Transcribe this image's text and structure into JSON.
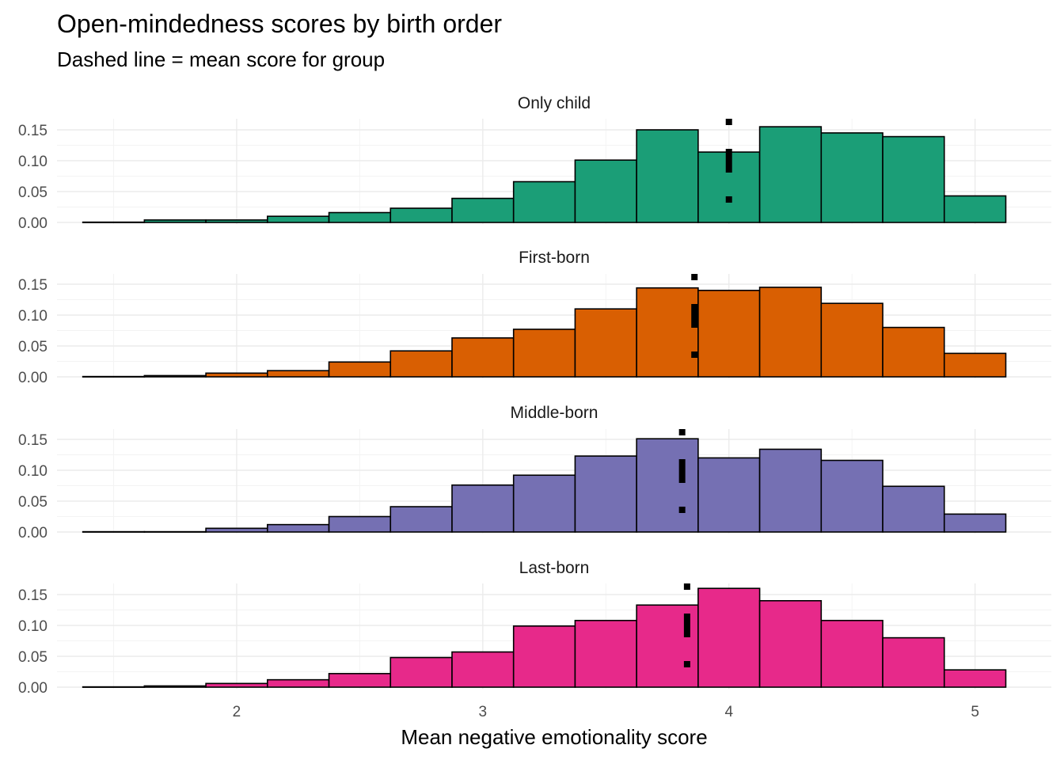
{
  "title": "Open-mindedness scores by birth order",
  "subtitle": "Dashed line = mean score for group",
  "chart_data": {
    "type": "bar",
    "subtype": "faceted-histogram",
    "xlabel": "Mean negative emotionality score",
    "ylabel": "",
    "xlim": [
      1.27,
      5.31
    ],
    "ylim": [
      0,
      0.165
    ],
    "x_ticks": [
      "2",
      "3",
      "4",
      "5"
    ],
    "x_tick_values": [
      2,
      3,
      4,
      5
    ],
    "y_ticks": [
      "0.00",
      "0.05",
      "0.10",
      "0.15"
    ],
    "y_tick_values": [
      0,
      0.05,
      0.1,
      0.15
    ],
    "bin_edges": [
      1.375,
      1.625,
      1.875,
      2.125,
      2.375,
      2.625,
      2.875,
      3.125,
      3.375,
      3.625,
      3.875,
      4.125,
      4.375,
      4.625,
      4.875,
      5.125
    ],
    "grid": true,
    "series": [
      {
        "name": "Only child",
        "color": "#1b9e77",
        "values": [
          0.0005,
          0.004,
          0.004,
          0.01,
          0.016,
          0.023,
          0.039,
          0.066,
          0.101,
          0.15,
          0.114,
          0.155,
          0.145,
          0.139,
          0.043
        ],
        "mean": 4.0
      },
      {
        "name": "First-born",
        "color": "#d95f02",
        "values": [
          0.0005,
          0.002,
          0.006,
          0.01,
          0.024,
          0.042,
          0.063,
          0.077,
          0.11,
          0.144,
          0.14,
          0.145,
          0.119,
          0.08,
          0.038
        ],
        "mean": 3.86
      },
      {
        "name": "Middle-born",
        "color": "#7570b3",
        "values": [
          0.0005,
          0.0005,
          0.006,
          0.012,
          0.025,
          0.041,
          0.076,
          0.092,
          0.123,
          0.151,
          0.12,
          0.134,
          0.116,
          0.074,
          0.029
        ],
        "mean": 3.81
      },
      {
        "name": "Last-born",
        "color": "#e7298a",
        "values": [
          0.0005,
          0.002,
          0.006,
          0.012,
          0.022,
          0.048,
          0.057,
          0.099,
          0.108,
          0.133,
          0.16,
          0.14,
          0.108,
          0.08,
          0.028
        ],
        "mean": 3.83
      }
    ]
  }
}
